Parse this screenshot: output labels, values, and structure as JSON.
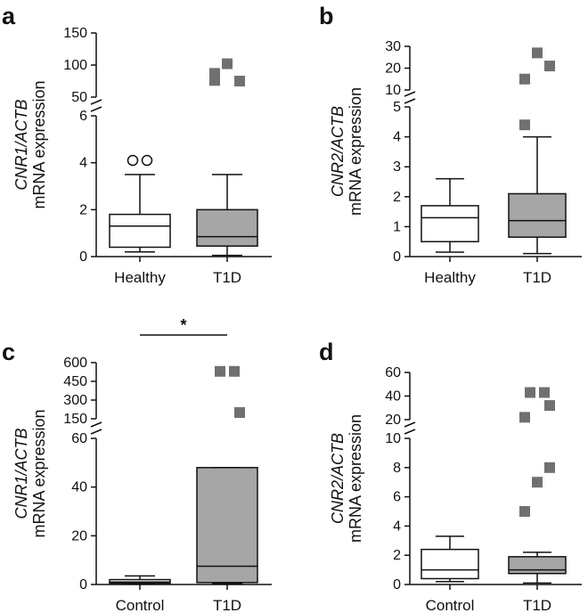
{
  "colors": {
    "healthy_fill": "#ffffff",
    "t1d_fill": "#a6a6a6",
    "outlier_t1d": "#707070",
    "stroke": "#111111"
  },
  "chart_data": [
    {
      "panel": "a",
      "type": "box",
      "ylabel_gene": "CNR1/ACTB",
      "ylabel_unit": "mRNA expression",
      "categories": [
        "Healthy",
        "T1D"
      ],
      "axis_break": {
        "lower": [
          0,
          6
        ],
        "upper": [
          50,
          150
        ]
      },
      "lower_ticks": [
        "0",
        "2",
        "4",
        "6"
      ],
      "upper_ticks": [
        "50",
        "100",
        "150"
      ],
      "boxes": [
        {
          "name": "Healthy",
          "whisker_low": 0.2,
          "q1": 0.4,
          "median": 1.3,
          "q3": 1.8,
          "whisker_high": 3.5,
          "outliers": [
            4.1,
            4.1
          ],
          "outlier_shape": "circle"
        },
        {
          "name": "T1D",
          "whisker_low": 0.05,
          "q1": 0.45,
          "median": 0.85,
          "q3": 2.0,
          "whisker_high": 3.5,
          "outliers": [
            87,
            102,
            75,
            76
          ],
          "outlier_shape": "square"
        }
      ]
    },
    {
      "panel": "b",
      "type": "box",
      "ylabel_gene": "CNR2/ACTB",
      "ylabel_unit": "mRNA expression",
      "categories": [
        "Healthy",
        "T1D"
      ],
      "axis_break": {
        "lower": [
          0,
          5
        ],
        "upper": [
          10,
          30
        ]
      },
      "lower_ticks": [
        "0",
        "1",
        "2",
        "3",
        "4",
        "5"
      ],
      "upper_ticks": [
        "10",
        "20",
        "30"
      ],
      "boxes": [
        {
          "name": "Healthy",
          "whisker_low": 0.15,
          "q1": 0.5,
          "median": 1.3,
          "q3": 1.7,
          "whisker_high": 2.6,
          "outliers": [],
          "outlier_shape": "circle"
        },
        {
          "name": "T1D",
          "whisker_low": 0.1,
          "q1": 0.65,
          "median": 1.2,
          "q3": 2.1,
          "whisker_high": 4.0,
          "outliers": [
            4.4,
            27,
            21,
            15
          ],
          "outlier_shape": "square"
        }
      ]
    },
    {
      "panel": "c",
      "type": "box",
      "ylabel_gene": "CNR1/ACTB",
      "ylabel_unit": "mRNA expression",
      "categories": [
        "Control",
        "T1D"
      ],
      "axis_break": {
        "lower": [
          0,
          60
        ],
        "upper": [
          150,
          600
        ]
      },
      "lower_ticks": [
        "0",
        "20",
        "40",
        "60"
      ],
      "upper_ticks": [
        "150",
        "300",
        "450",
        "600"
      ],
      "significance": "*",
      "boxes": [
        {
          "name": "Control",
          "whisker_low": 0.2,
          "q1": 0.5,
          "median": 1.0,
          "q3": 2.0,
          "whisker_high": 3.5,
          "outliers": [],
          "outlier_shape": "circle"
        },
        {
          "name": "T1D",
          "whisker_low": 0.3,
          "q1": 0.8,
          "median": 7.5,
          "q3": 48,
          "whisker_high": 48,
          "outliers": [
            530,
            530,
            200
          ],
          "outlier_shape": "square"
        }
      ]
    },
    {
      "panel": "d",
      "type": "box",
      "ylabel_gene": "CNR2/ACTB",
      "ylabel_unit": "mRNA expression",
      "categories": [
        "Control",
        "T1D"
      ],
      "axis_break": {
        "lower": [
          0,
          10
        ],
        "upper": [
          20,
          60
        ]
      },
      "lower_ticks": [
        "0",
        "2",
        "4",
        "6",
        "8",
        "10"
      ],
      "upper_ticks": [
        "20",
        "40",
        "60"
      ],
      "boxes": [
        {
          "name": "Control",
          "whisker_low": 0.2,
          "q1": 0.4,
          "median": 1.0,
          "q3": 2.4,
          "whisker_high": 3.3,
          "outliers": [],
          "outlier_shape": "circle"
        },
        {
          "name": "T1D",
          "whisker_low": 0.1,
          "q1": 0.75,
          "median": 1.0,
          "q3": 1.9,
          "whisker_high": 2.2,
          "outliers": [
            5.0,
            7.0,
            8.0,
            43,
            43,
            32,
            22
          ],
          "outlier_shape": "square"
        }
      ]
    }
  ]
}
